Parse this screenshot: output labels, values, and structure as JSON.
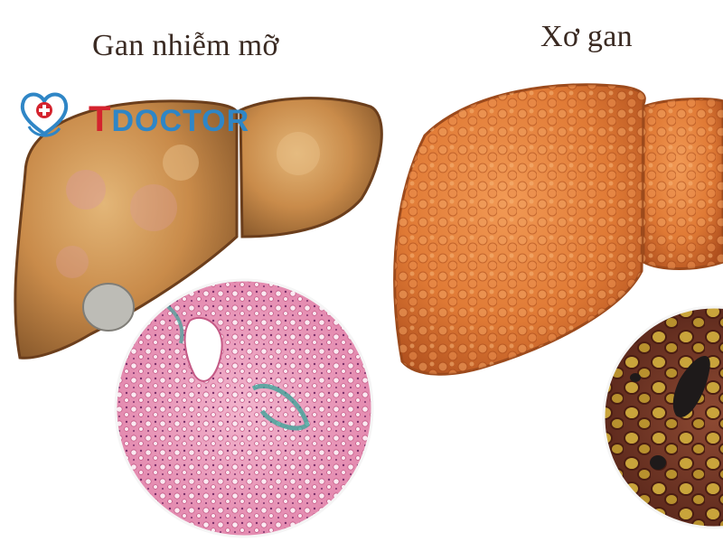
{
  "captions": {
    "left": "Gan nhiễm mỡ",
    "right": "Xơ gan"
  },
  "logo": {
    "letter": "T",
    "word": "DOCTOR",
    "icon": "heart-stethoscope-icon"
  },
  "colors": {
    "fatty_liver": "#c98b4a",
    "cirrhosis_liver": "#e07a35",
    "histology_pink": "#e48bb0",
    "cirrhosis_tissue": "#7a3b2a",
    "logo_blue": "#2f86c6",
    "logo_red": "#d4232e"
  }
}
